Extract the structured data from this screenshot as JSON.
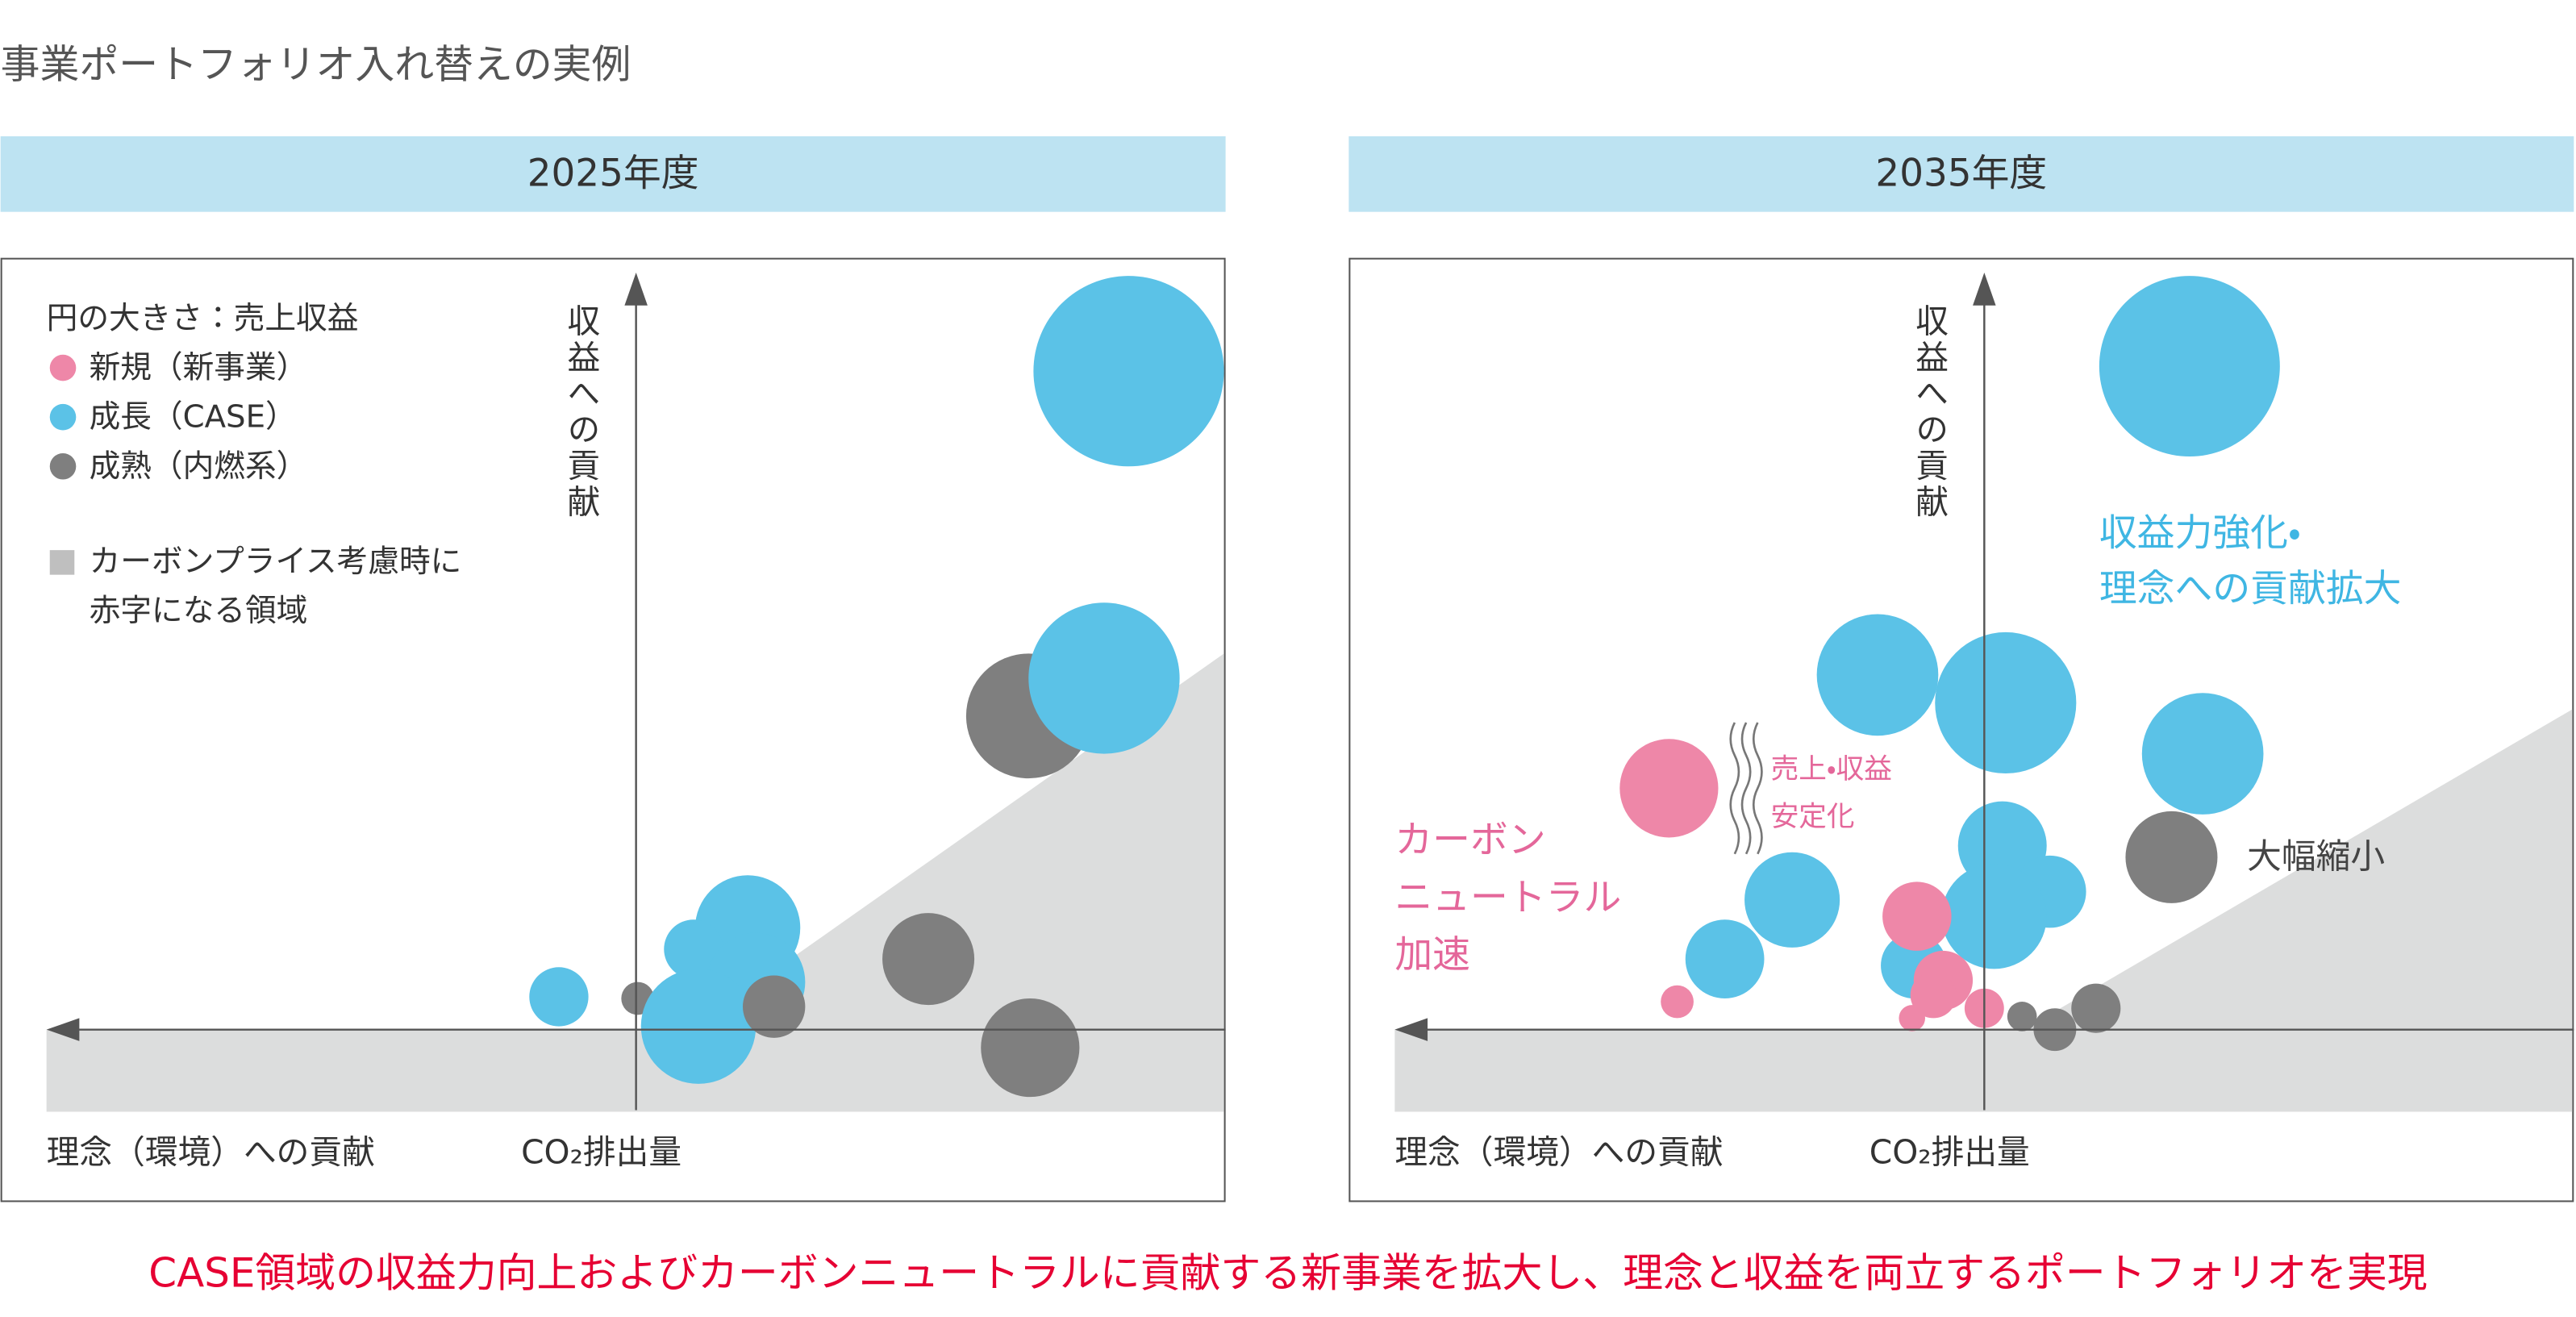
{
  "title": "事業ポートフォリオ入れ替えの実例",
  "legend": {
    "title": "円の大きさ：売上収益",
    "items": [
      "新規（新事業）",
      "成長（CASE）",
      "成熟（内燃系）"
    ],
    "area": [
      "カーボンプライス考慮時に",
      "赤字になる領域"
    ]
  },
  "panels": [
    {
      "header": "2025年度",
      "y_axis_label": "収益への貢献",
      "x_axis_label": "理念（環境）への貢献",
      "co2_label": "CO₂排出量"
    },
    {
      "header": "2035年度",
      "y_axis_label": "収益への貢献",
      "x_axis_label": "理念（環境）への貢献",
      "co2_label": "CO₂排出量",
      "annotations": {
        "profit": [
          "収益力強化・",
          "理念への貢献拡大"
        ],
        "stable": [
          "売上・収益",
          "安定化"
        ],
        "carbon": [
          "カーボン",
          "ニュートラル",
          "加速"
        ],
        "shrink": "大幅縮小"
      }
    }
  ],
  "footer": "CASE領域の収益力向上およびカーボンニュートラルに貢献する新事業を拡大し、理念と収益を両立するポートフォリオを実現"
}
